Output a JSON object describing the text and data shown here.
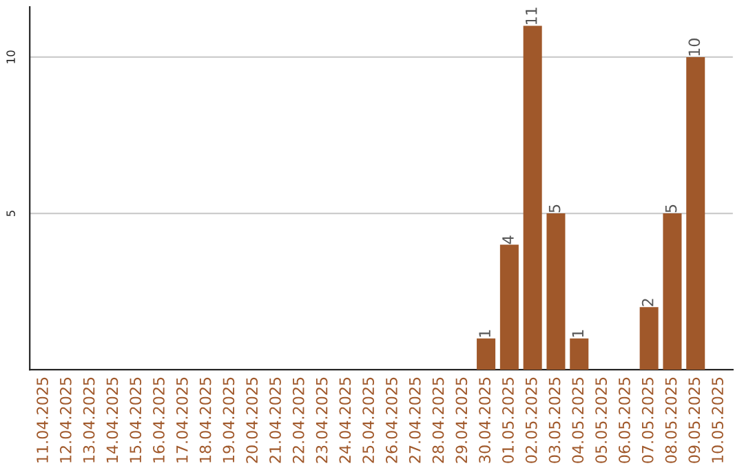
{
  "chart_data": {
    "type": "bar",
    "categories": [
      "11.04.2025",
      "12.04.2025",
      "13.04.2025",
      "14.04.2025",
      "15.04.2025",
      "16.04.2025",
      "17.04.2025",
      "18.04.2025",
      "19.04.2025",
      "20.04.2025",
      "21.04.2025",
      "22.04.2025",
      "23.04.2025",
      "24.04.2025",
      "25.04.2025",
      "26.04.2025",
      "27.04.2025",
      "28.04.2025",
      "29.04.2025",
      "30.04.2025",
      "01.05.2025",
      "02.05.2025",
      "03.05.2025",
      "04.05.2025",
      "05.05.2025",
      "06.05.2025",
      "07.05.2025",
      "08.05.2025",
      "09.05.2025",
      "10.05.2025"
    ],
    "values": [
      null,
      null,
      null,
      null,
      null,
      null,
      null,
      null,
      null,
      null,
      null,
      null,
      null,
      null,
      null,
      null,
      null,
      null,
      null,
      1,
      4,
      11,
      5,
      1,
      null,
      null,
      2,
      5,
      10,
      null
    ],
    "value_labels": [
      null,
      null,
      null,
      null,
      null,
      null,
      null,
      null,
      null,
      null,
      null,
      null,
      null,
      null,
      null,
      null,
      null,
      null,
      null,
      "1",
      "4",
      "11",
      "5",
      "1",
      null,
      null,
      "2",
      "5",
      "10",
      null
    ],
    "color": "#a0582a",
    "ylim": [
      0,
      11.6
    ],
    "yticks": [
      5,
      10
    ],
    "grid": "y"
  }
}
